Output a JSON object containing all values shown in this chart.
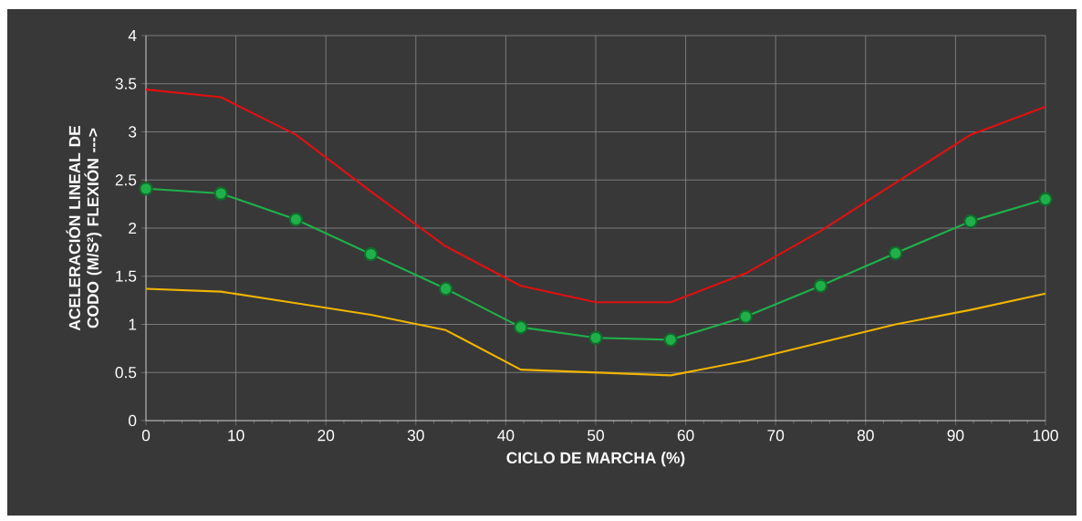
{
  "chart_data": {
    "type": "line",
    "xlabel": "CICLO DE MARCHA (%)",
    "ylabel": "ACELERACIÓN LINEAL DE CODO (M/S²) FLEXIÓN --->",
    "xlim": [
      0,
      100
    ],
    "ylim": [
      0,
      4
    ],
    "xticks": [
      0,
      10,
      20,
      30,
      40,
      50,
      60,
      70,
      80,
      90,
      100
    ],
    "yticks": [
      0,
      0.5,
      1,
      1.5,
      2,
      2.5,
      3,
      3.5,
      4
    ],
    "grid": true,
    "x": [
      0,
      8.33,
      16.67,
      25,
      33.33,
      41.67,
      50,
      58.33,
      66.67,
      75,
      83.33,
      91.67,
      100
    ],
    "series": [
      {
        "color": "#e01010",
        "marker": "none",
        "values": [
          3.44,
          3.36,
          2.97,
          2.38,
          1.81,
          1.4,
          1.23,
          1.23,
          1.53,
          1.97,
          2.47,
          2.97,
          3.26
        ]
      },
      {
        "color": "#f0b400",
        "marker": "none",
        "values": [
          1.37,
          1.34,
          1.22,
          1.1,
          0.94,
          0.53,
          0.5,
          0.47,
          0.62,
          0.81,
          1.0,
          1.15,
          1.32
        ]
      },
      {
        "color": "#1fb04a",
        "marker": "circle",
        "values": [
          2.41,
          2.36,
          2.09,
          1.73,
          1.37,
          0.97,
          0.86,
          0.84,
          1.08,
          1.4,
          1.74,
          2.07,
          2.3
        ]
      }
    ]
  }
}
